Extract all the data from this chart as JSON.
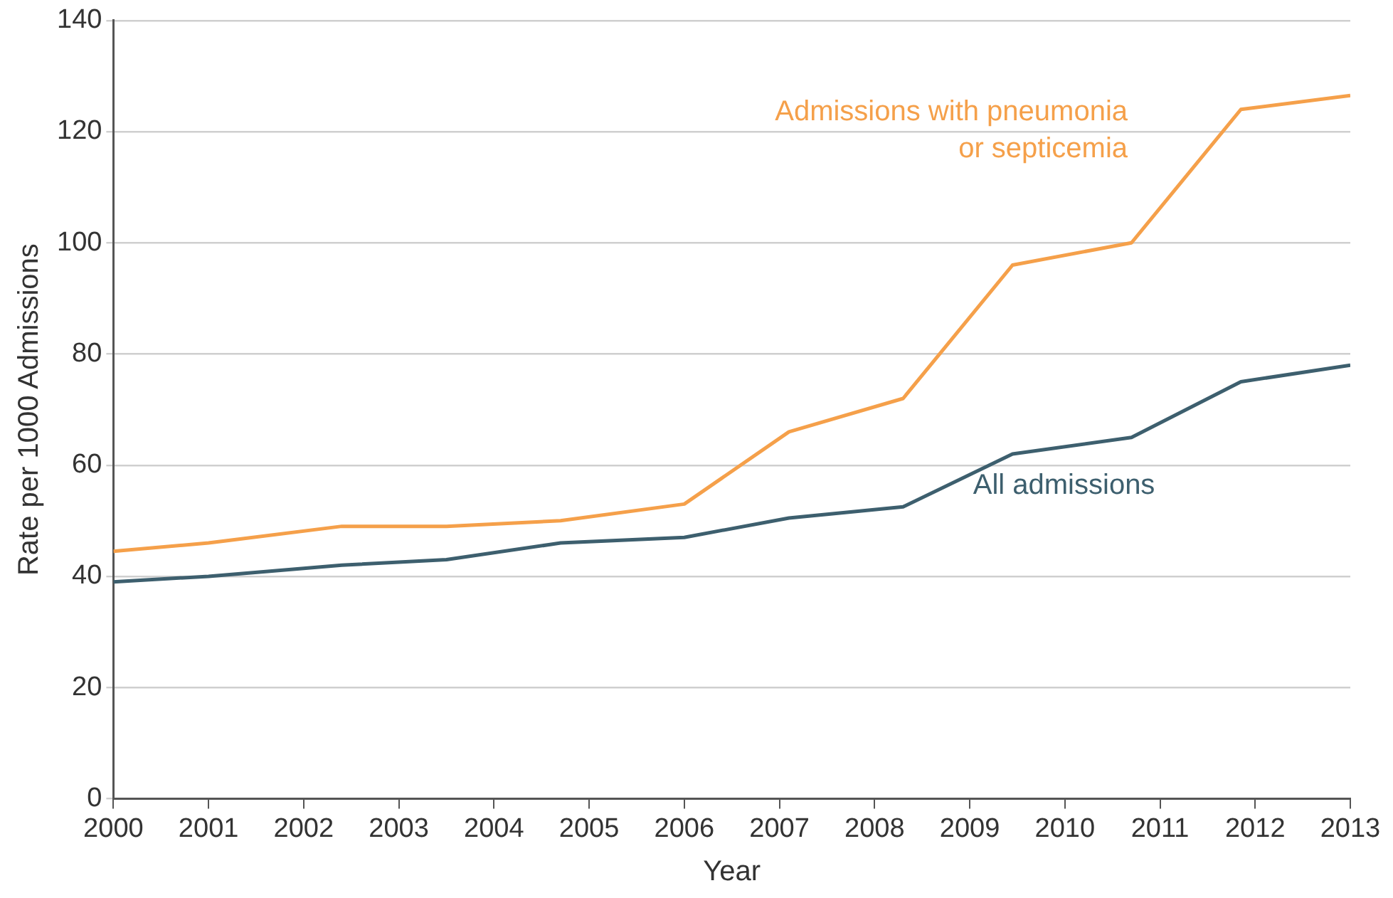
{
  "chart_data": {
    "type": "line",
    "xlabel": "Year",
    "ylabel": "Rate per 1000 Admissions",
    "xlim": [
      2000,
      2013
    ],
    "xticks": [
      2000,
      2001,
      2002,
      2003,
      2004,
      2005,
      2006,
      2007,
      2008,
      2009,
      2010,
      2011,
      2012,
      2013
    ],
    "ylim": [
      0,
      140
    ],
    "yticks": [
      0,
      20,
      40,
      60,
      80,
      100,
      120,
      140
    ],
    "grid": "y",
    "legend": false,
    "marker": "none",
    "line_style": "solid",
    "series": [
      {
        "name": "Admissions with pneumonia or septicemia",
        "color": "#f5a04a",
        "x": [
          2000,
          2001,
          2002.4,
          2003.5,
          2004.7,
          2006,
          2007.1,
          2008.3,
          2009.45,
          2010.7,
          2011.85,
          2013
        ],
        "values": [
          44.5,
          46,
          49,
          49,
          50,
          53,
          66,
          72,
          96,
          100,
          124,
          126.5
        ]
      },
      {
        "name": "All admissions",
        "color": "#3d5f6e",
        "x": [
          2000,
          2001,
          2002.4,
          2003.5,
          2004.7,
          2006,
          2007.1,
          2008.3,
          2009.45,
          2010.7,
          2011.85,
          2013
        ],
        "values": [
          39,
          40,
          42,
          43,
          46,
          47,
          50.5,
          52.5,
          62,
          65,
          75,
          78
        ]
      }
    ]
  }
}
